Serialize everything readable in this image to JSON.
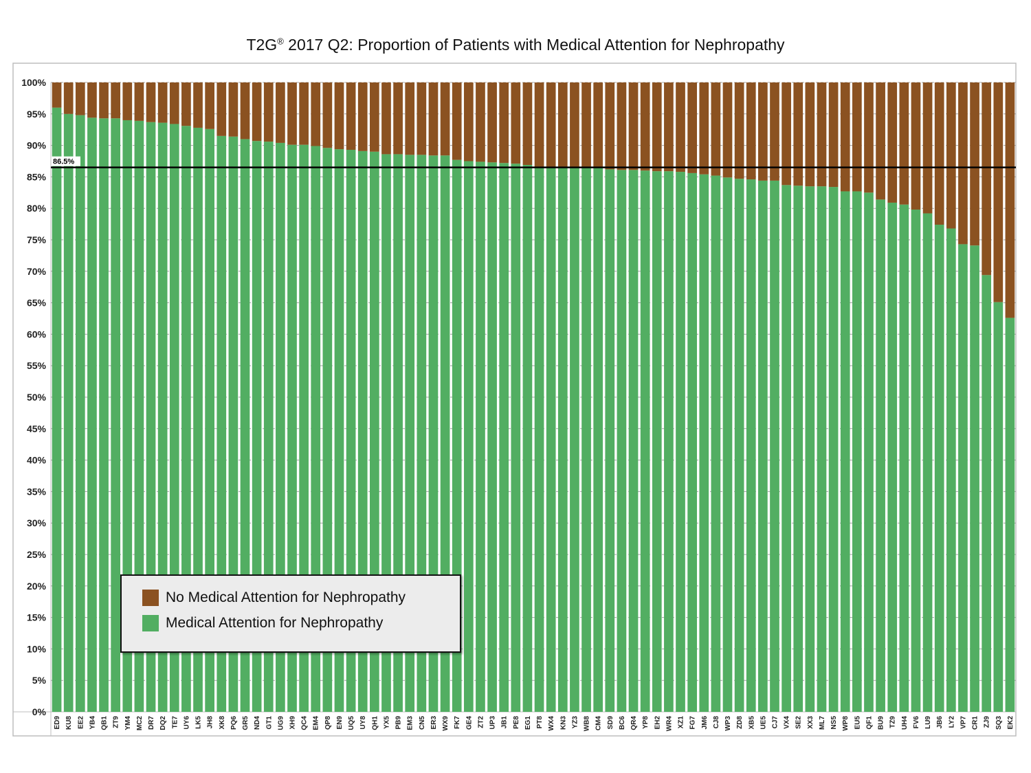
{
  "chart_data": {
    "type": "bar",
    "stacked": true,
    "title_main": "T2G",
    "title_mark": "®",
    "title_rest": " 2017 Q2: Proportion of Patients with Medical Attention for Nephropathy",
    "categories": [
      "ED9",
      "KU8",
      "EE2",
      "YB4",
      "QB1",
      "ZT9",
      "YM4",
      "MC2",
      "DR7",
      "DQ2",
      "TE7",
      "UY6",
      "LK5",
      "JH8",
      "XK8",
      "PQ6",
      "GR5",
      "ND4",
      "GT1",
      "UG9",
      "XH9",
      "QC4",
      "EM4",
      "QP8",
      "EN9",
      "UQ5",
      "UY8",
      "QH1",
      "YX5",
      "PB9",
      "EM3",
      "CN5",
      "ER3",
      "WX9",
      "FK7",
      "GE4",
      "ZT2",
      "UP3",
      "JB1",
      "PE8",
      "EG1",
      "PT8",
      "WX4",
      "KN3",
      "YZ3",
      "WB8",
      "CM4",
      "SD9",
      "BC6",
      "QR4",
      "YP8",
      "EH2",
      "WR4",
      "XZ1",
      "FG7",
      "JM6",
      "CJ8",
      "WP3",
      "ZD8",
      "XB5",
      "UE5",
      "CJ7",
      "VX4",
      "SE2",
      "XX3",
      "ML7",
      "NS5",
      "WP8",
      "EU5",
      "QF1",
      "BU9",
      "TZ9",
      "UH4",
      "FV6",
      "LU9",
      "JB6",
      "LY2",
      "VP7",
      "CR1",
      "ZJ9",
      "SQ3",
      "EK2"
    ],
    "series": [
      {
        "name": "No Medical Attention for Nephropathy",
        "color": "#8B5221",
        "values": [
          4.0,
          5.0,
          5.2,
          5.6,
          5.7,
          5.7,
          6.0,
          6.1,
          6.3,
          6.4,
          6.6,
          6.9,
          7.2,
          7.4,
          8.5,
          8.6,
          9.0,
          9.3,
          9.4,
          9.6,
          9.9,
          9.9,
          10.1,
          10.4,
          10.6,
          10.7,
          10.9,
          11.0,
          11.4,
          11.4,
          11.5,
          11.5,
          11.6,
          11.6,
          12.3,
          12.5,
          12.6,
          12.7,
          12.8,
          12.9,
          13.1,
          13.4,
          13.5,
          13.5,
          13.6,
          13.6,
          13.6,
          13.8,
          13.9,
          13.9,
          14.0,
          14.1,
          14.1,
          14.2,
          14.4,
          14.6,
          14.8,
          15.1,
          15.3,
          15.4,
          15.6,
          15.6,
          16.3,
          16.4,
          16.5,
          16.5,
          16.6,
          17.3,
          17.3,
          17.5,
          18.6,
          19.1,
          19.4,
          20.2,
          20.8,
          22.6,
          23.2,
          25.7,
          25.9,
          30.6,
          34.9,
          37.4
        ]
      },
      {
        "name": "Medical Attention for Nephropathy",
        "color": "#52AE62",
        "values": [
          96.0,
          95.0,
          94.8,
          94.4,
          94.3,
          94.3,
          94.0,
          93.9,
          93.7,
          93.6,
          93.4,
          93.1,
          92.8,
          92.6,
          91.5,
          91.4,
          91.0,
          90.7,
          90.6,
          90.4,
          90.1,
          90.1,
          89.9,
          89.6,
          89.4,
          89.3,
          89.1,
          89.0,
          88.6,
          88.6,
          88.5,
          88.5,
          88.4,
          88.4,
          87.7,
          87.5,
          87.4,
          87.3,
          87.2,
          87.1,
          86.9,
          86.6,
          86.5,
          86.5,
          86.4,
          86.4,
          86.4,
          86.2,
          86.1,
          86.1,
          86.0,
          85.9,
          85.9,
          85.8,
          85.6,
          85.4,
          85.2,
          84.9,
          84.7,
          84.6,
          84.4,
          84.4,
          83.7,
          83.6,
          83.5,
          83.5,
          83.4,
          82.7,
          82.7,
          82.5,
          81.4,
          80.9,
          80.6,
          79.8,
          79.2,
          77.4,
          76.8,
          74.3,
          74.1,
          69.4,
          65.1,
          62.6
        ]
      }
    ],
    "y_ticks": [
      "0%",
      "5%",
      "10%",
      "15%",
      "20%",
      "25%",
      "30%",
      "35%",
      "40%",
      "45%",
      "50%",
      "55%",
      "60%",
      "65%",
      "70%",
      "75%",
      "80%",
      "85%",
      "90%",
      "95%",
      "100%"
    ],
    "ylim": [
      0,
      100
    ],
    "reference_line": {
      "value": 86.5,
      "label": "86.5%"
    },
    "grid": true,
    "legend_position": "bottom-left"
  }
}
